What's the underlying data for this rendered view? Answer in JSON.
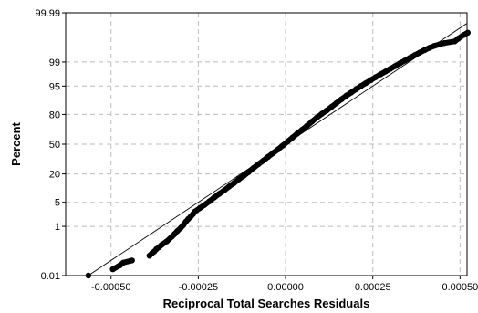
{
  "chart_data": {
    "type": "scatter",
    "title": "",
    "xlabel": "Reciprocal Total Searches Residuals",
    "ylabel": "Percent",
    "x_scale": "linear",
    "y_scale": "normal-probability",
    "xlim": [
      -0.00063,
      0.00052
    ],
    "ylim": [
      0.01,
      99.99
    ],
    "grid": true,
    "legend": "none",
    "x_ticks": [
      {
        "value": -0.0005,
        "label": "-0.00050"
      },
      {
        "value": -0.00025,
        "label": "-0.00025"
      },
      {
        "value": 0.0,
        "label": "0.00000"
      },
      {
        "value": 0.00025,
        "label": "0.00025"
      },
      {
        "value": 0.0005,
        "label": "0.00050"
      }
    ],
    "y_ticks": [
      {
        "value": 0.01,
        "label": "0.01"
      },
      {
        "value": 1,
        "label": "1"
      },
      {
        "value": 5,
        "label": "5"
      },
      {
        "value": 20,
        "label": "20"
      },
      {
        "value": 50,
        "label": "50"
      },
      {
        "value": 80,
        "label": "80"
      },
      {
        "value": 95,
        "label": "95"
      },
      {
        "value": 99,
        "label": "99"
      },
      {
        "value": 99.99,
        "label": "99.99"
      }
    ],
    "reference_line": {
      "type": "normal-fit",
      "mean": 0.0,
      "sd": 0.000152
    },
    "series": [
      {
        "color": "#000000",
        "x": [
          -0.000565,
          -0.000495,
          -0.000475,
          -0.000465,
          -0.00044,
          -0.00039,
          -0.000383,
          -0.000376,
          -0.00037,
          -0.000362,
          -0.000355,
          -0.00034,
          -0.000325,
          -0.000318,
          -0.00031,
          -0.0003,
          -0.000293,
          -0.000286,
          -0.000279,
          -0.000272,
          -0.000265,
          -0.00026,
          -0.000246,
          -0.000232,
          -0.000218,
          -0.000204,
          -0.00019,
          -0.000176,
          -0.000162,
          -0.000148,
          -0.000134,
          -0.00012,
          -0.000106,
          -9.2e-05,
          -7.8e-05,
          -6.4e-05,
          -5e-05,
          -3.6e-05,
          -2.2e-05,
          -8e-06,
          6e-06,
          2e-05,
          3.4e-05,
          4.8e-05,
          6.2e-05,
          7.6e-05,
          9e-05,
          0.000104,
          0.000118,
          0.000132,
          0.000146,
          0.00016,
          0.000174,
          0.000188,
          0.000202,
          0.000216,
          0.00023,
          0.000244,
          0.000258,
          0.000272,
          0.000286,
          0.0003,
          0.000314,
          0.000328,
          0.000342,
          0.000356,
          0.00037,
          0.000384,
          0.000398,
          0.000412,
          0.000426,
          0.00044,
          0.000455,
          0.000485,
          0.000495,
          0.00051,
          0.000522
        ],
        "y": [
          0.01,
          0.02,
          0.03,
          0.04,
          0.05,
          0.08,
          0.1,
          0.12,
          0.15,
          0.18,
          0.22,
          0.3,
          0.45,
          0.55,
          0.7,
          0.9,
          1.1,
          1.4,
          1.7,
          2.0,
          2.4,
          2.8,
          3.5,
          4.3,
          5.3,
          6.6,
          8.0,
          9.5,
          11.5,
          13.5,
          16.0,
          18.5,
          21.5,
          25.0,
          28.5,
          32.0,
          36.0,
          40.0,
          44.0,
          48.5,
          53.0,
          57.5,
          62.0,
          66.0,
          70.0,
          74.0,
          77.5,
          80.5,
          83.0,
          85.5,
          87.8,
          89.8,
          91.5,
          92.8,
          94.0,
          95.0,
          95.8,
          96.5,
          97.1,
          97.6,
          98.0,
          98.35,
          98.65,
          98.9,
          99.1,
          99.27,
          99.41,
          99.52,
          99.61,
          99.68,
          99.73,
          99.76,
          99.79,
          99.82,
          99.86,
          99.9,
          99.92
        ]
      }
    ]
  }
}
